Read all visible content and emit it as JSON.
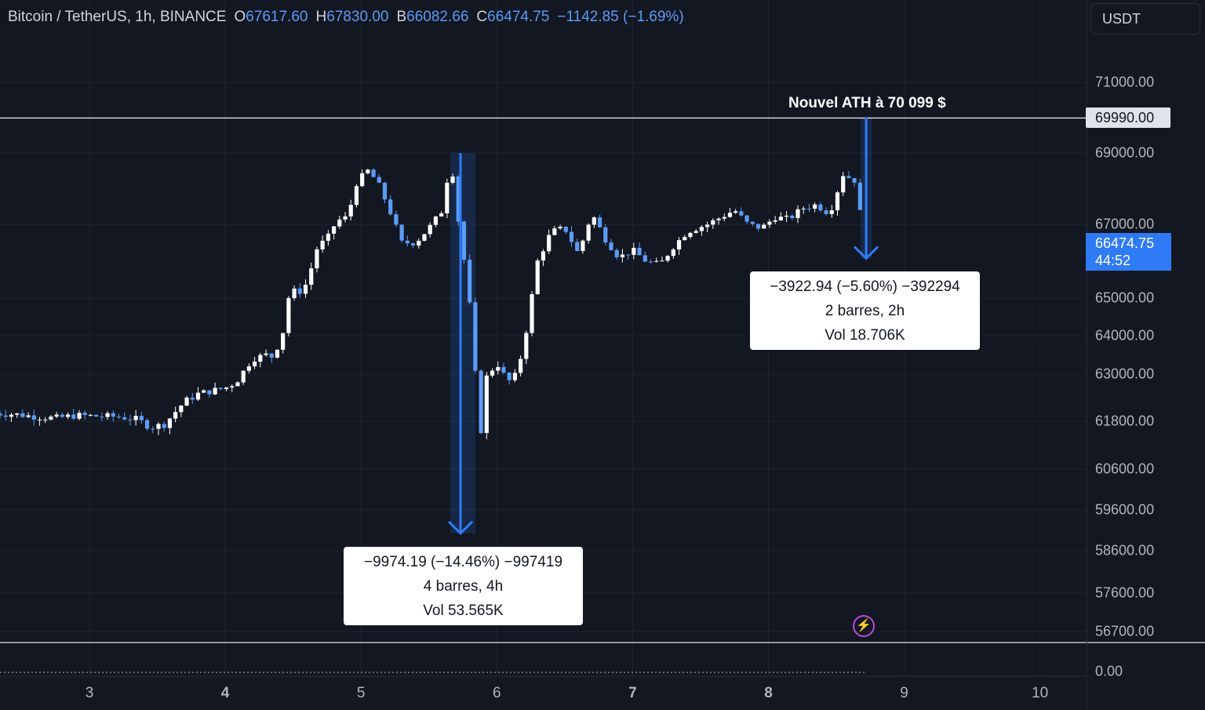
{
  "header": {
    "symbol": "Bitcoin / TetherUS, 1h, BINANCE",
    "open_label": "O",
    "open": "67617.60",
    "high_label": "H",
    "high": "67830.00",
    "low_label": "B",
    "low": "66082.66",
    "close_label": "C",
    "close": "66474.75",
    "change": "−1142.85 (−1.69%)"
  },
  "currency_button": "USDT",
  "y_axis_labels": [
    "71000.00",
    "69000.00",
    "67000.00",
    "65000.00",
    "64000.00",
    "63000.00",
    "61800.00",
    "60600.00",
    "59600.00",
    "58600.00",
    "57600.00",
    "56700.00",
    "0.00"
  ],
  "x_axis_labels": [
    "3",
    "4",
    "5",
    "6",
    "7",
    "8",
    "9",
    "10"
  ],
  "ath_line_tag": "69990.00",
  "ath_annotation": "Nouvel ATH à 70 099 $",
  "current_price": {
    "price": "66474.75",
    "countdown": "44:52"
  },
  "measure_1": {
    "line1": "−9974.19 (−14.46%) −997419",
    "line2": "4 barres, 4h",
    "line3": "Vol 53.565K"
  },
  "measure_2": {
    "line1": "−3922.94 (−5.60%) −392294",
    "line2": "2 barres, 2h",
    "line3": "Vol 18.706K"
  },
  "colors": {
    "background": "#131722",
    "candle_up": "#ffffff",
    "candle_down": "#5b9cf6",
    "measure_arrow": "#2f7bf6",
    "grid": "#1f2330"
  },
  "chart_data": {
    "type": "candlestick",
    "title": "",
    "xlabel": "",
    "ylabel": "",
    "grid": true,
    "x_range": [
      2.35,
      10.55
    ],
    "hlines": [
      69990,
      56700
    ],
    "last_price": 66474.75,
    "measure_1": {
      "from": 69000,
      "to": 59026,
      "x": 5.75
    },
    "measure_2": {
      "from": 70000,
      "to": 66077,
      "x": 8.72
    },
    "key_prices": [
      [
        2.3,
        62000
      ],
      [
        2.45,
        61980
      ],
      [
        2.6,
        61920
      ],
      [
        2.75,
        61880
      ],
      [
        2.9,
        61950
      ],
      [
        3.05,
        61930
      ],
      [
        3.2,
        61920
      ],
      [
        3.35,
        61850
      ],
      [
        3.45,
        61650
      ],
      [
        3.55,
        61720
      ],
      [
        3.7,
        62300
      ],
      [
        3.8,
        62500
      ],
      [
        4.0,
        62650
      ],
      [
        4.08,
        62800
      ],
      [
        4.2,
        63400
      ],
      [
        4.3,
        63500
      ],
      [
        4.35,
        63450
      ],
      [
        4.42,
        64000
      ],
      [
        4.48,
        65300
      ],
      [
        4.53,
        65100
      ],
      [
        4.6,
        65400
      ],
      [
        4.68,
        66400
      ],
      [
        4.75,
        66600
      ],
      [
        4.82,
        67100
      ],
      [
        4.9,
        67200
      ],
      [
        4.97,
        68200
      ],
      [
        5.05,
        68500
      ],
      [
        5.12,
        68200
      ],
      [
        5.2,
        67500
      ],
      [
        5.3,
        66500
      ],
      [
        5.4,
        66500
      ],
      [
        5.5,
        66900
      ],
      [
        5.6,
        67400
      ],
      [
        5.66,
        68900
      ],
      [
        5.72,
        67000
      ],
      [
        5.78,
        65500
      ],
      [
        5.83,
        63800
      ],
      [
        5.87,
        61100
      ],
      [
        5.92,
        62900
      ],
      [
        6.0,
        63300
      ],
      [
        6.08,
        62800
      ],
      [
        6.15,
        63000
      ],
      [
        6.22,
        64200
      ],
      [
        6.3,
        66000
      ],
      [
        6.4,
        66800
      ],
      [
        6.5,
        66900
      ],
      [
        6.6,
        66200
      ],
      [
        6.7,
        67300
      ],
      [
        6.8,
        66600
      ],
      [
        6.9,
        66100
      ],
      [
        7.0,
        66300
      ],
      [
        7.1,
        66000
      ],
      [
        7.2,
        65900
      ],
      [
        7.3,
        66400
      ],
      [
        7.4,
        66800
      ],
      [
        7.55,
        67000
      ],
      [
        7.65,
        67200
      ],
      [
        7.75,
        67400
      ],
      [
        7.85,
        67000
      ],
      [
        7.95,
        66900
      ],
      [
        8.05,
        67200
      ],
      [
        8.15,
        67150
      ],
      [
        8.25,
        67450
      ],
      [
        8.35,
        67550
      ],
      [
        8.45,
        67300
      ],
      [
        8.55,
        68400
      ],
      [
        8.65,
        68200
      ],
      [
        8.7,
        66474.75
      ]
    ]
  }
}
